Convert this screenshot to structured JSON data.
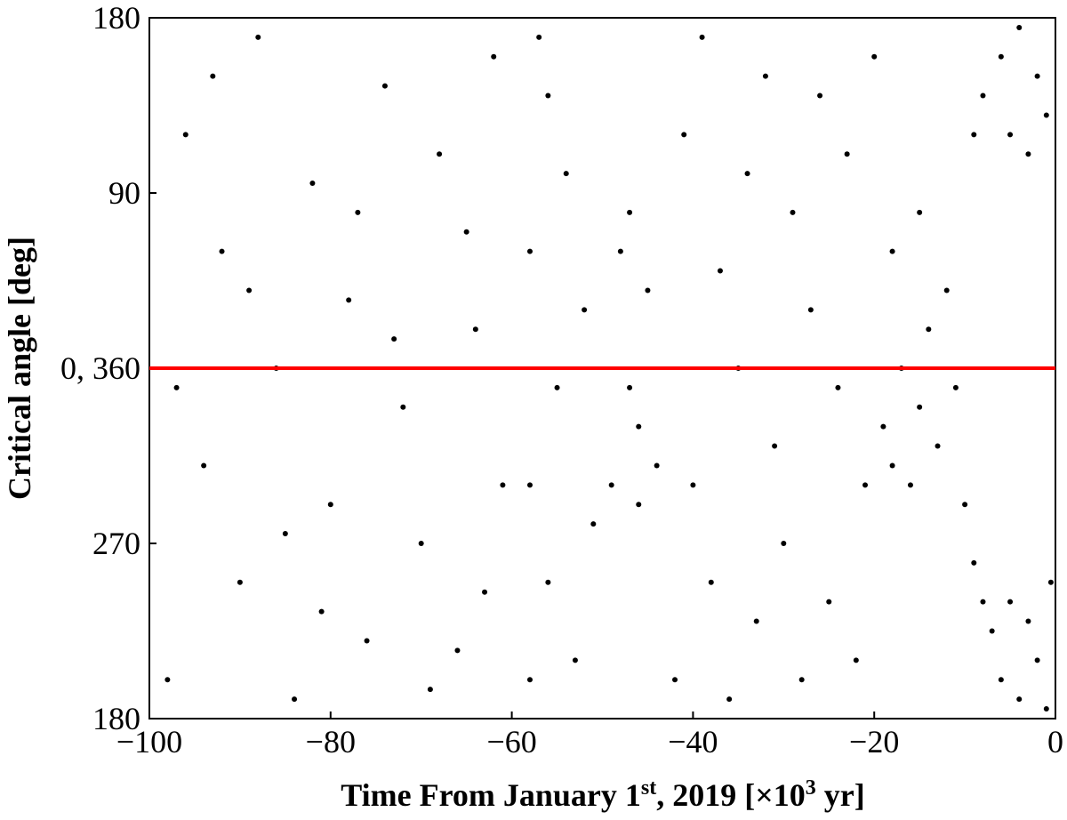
{
  "chart_data": {
    "type": "scatter",
    "xlabel": [
      "Time From January 1",
      "st",
      ", 2019 [×10",
      "3",
      " yr]"
    ],
    "ylabel": "Critical angle [deg]",
    "xlim": [
      -100,
      0
    ],
    "xticks": [
      {
        "value": -100,
        "label": "−100"
      },
      {
        "value": -80,
        "label": "−80"
      },
      {
        "value": -60,
        "label": "−60"
      },
      {
        "value": -40,
        "label": "−40"
      },
      {
        "value": -20,
        "label": "−20"
      },
      0
    ],
    "ylim": [
      180,
      540
    ],
    "yticks": [
      180,
      270,
      {
        "value": 360,
        "label": "0, 360"
      },
      {
        "value": 450,
        "label": "90"
      },
      {
        "value": 540,
        "label": "180"
      }
    ],
    "hlines": [
      {
        "value": 360,
        "color": "#ff0000"
      }
    ],
    "series": [
      {
        "color": "#000000",
        "x": [
          -98,
          -96,
          -94,
          -92,
          -90,
          -88,
          -86,
          -84,
          -82,
          -80,
          -78,
          -76,
          -74,
          -72,
          -70,
          -68,
          -66,
          -64,
          -62,
          -61,
          -97,
          -93,
          -89,
          -85,
          -81,
          -77,
          -73,
          -69,
          -65,
          -63,
          -58,
          -58,
          -58,
          -56,
          -56,
          -55,
          -54,
          -53,
          -52,
          -51,
          -57,
          -49,
          -48,
          -47,
          -46,
          -45,
          -44,
          -47,
          -46,
          -42,
          -41,
          -40,
          -39,
          -38,
          -37,
          -36,
          -35,
          -34,
          -33,
          -32,
          -31,
          -30,
          -29,
          -28,
          -27,
          -26,
          -25,
          -24,
          -23,
          -22,
          -21,
          -20,
          -19,
          -18,
          -17,
          -16,
          -15,
          -14,
          -13,
          -12,
          -11,
          -18,
          -15,
          -10,
          -9,
          -9,
          -8,
          -8,
          -7,
          -6,
          -5,
          -4,
          -3,
          -2,
          -1,
          -6,
          -5,
          -4,
          -3,
          -2,
          -1,
          -0.5
        ],
        "y": [
          200,
          480,
          310,
          420,
          250,
          530,
          360,
          190,
          455,
          290,
          395,
          220,
          505,
          340,
          270,
          470,
          215,
          380,
          520,
          300,
          350,
          510,
          400,
          275,
          235,
          440,
          375,
          195,
          430,
          245,
          200,
          300,
          420,
          250,
          500,
          350,
          460,
          210,
          390,
          280,
          530,
          300,
          420,
          350,
          330,
          400,
          310,
          440,
          290,
          200,
          480,
          300,
          530,
          250,
          410,
          190,
          360,
          460,
          230,
          510,
          320,
          270,
          440,
          200,
          390,
          500,
          240,
          350,
          470,
          210,
          300,
          520,
          330,
          420,
          360,
          300,
          440,
          380,
          320,
          400,
          350,
          310,
          340,
          290,
          260,
          480,
          240,
          500,
          225,
          520,
          480,
          535,
          470,
          510,
          490,
          200,
          240,
          190,
          230,
          210,
          185,
          250
        ]
      }
    ]
  }
}
